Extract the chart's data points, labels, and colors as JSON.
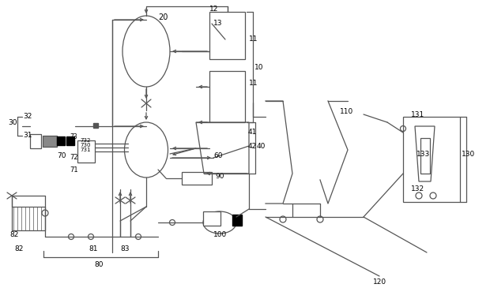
{
  "lc": "#555555",
  "lw": 0.9,
  "fig_w": 6.2,
  "fig_h": 3.79
}
